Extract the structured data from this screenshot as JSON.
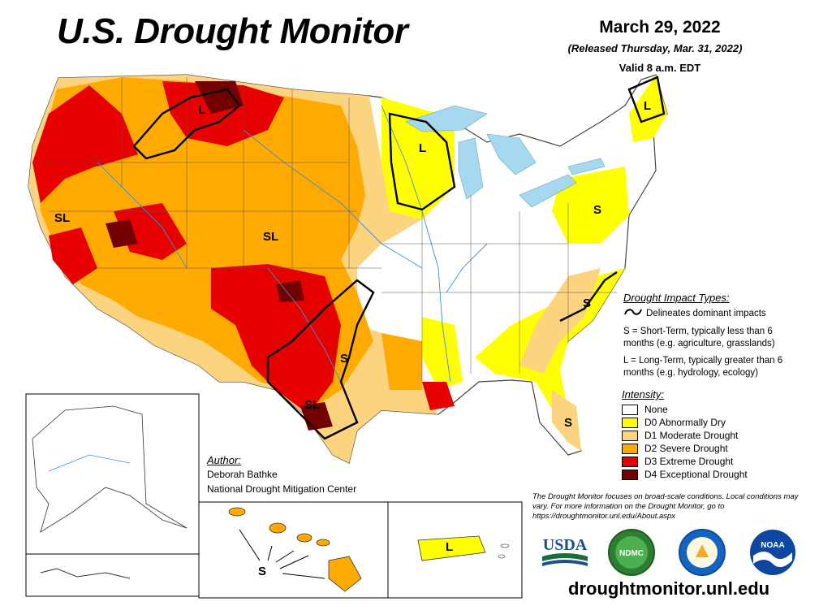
{
  "title": "U.S. Drought Monitor",
  "date": "March 29, 2022",
  "released": "(Released Thursday, Mar. 31, 2022)",
  "valid": "Valid 8 a.m. EDT",
  "impact_types": {
    "heading": "Drought Impact Types:",
    "delineates": "Delineates dominant impacts",
    "short_term": "S = Short-Term, typically less than 6 months (e.g. agriculture, grasslands)",
    "long_term": "L = Long-Term, typically greater than 6 months (e.g. hydrology, ecology)"
  },
  "intensity": {
    "heading": "Intensity:",
    "levels": [
      {
        "label": "None",
        "color": "#ffffff"
      },
      {
        "label": "D0 Abnormally Dry",
        "color": "#ffff00"
      },
      {
        "label": "D1 Moderate Drought",
        "color": "#fcd37f"
      },
      {
        "label": "D2 Severe Drought",
        "color": "#ffaa00"
      },
      {
        "label": "D3 Extreme Drought",
        "color": "#e60000"
      },
      {
        "label": "D4 Exceptional Drought",
        "color": "#730000"
      }
    ]
  },
  "author": {
    "heading": "Author:",
    "name": "Deborah Bathke",
    "org": "National Drought Mitigation Center"
  },
  "note": "The Drought Monitor focuses on broad-scale conditions. Local conditions may vary. For more information on the Drought Monitor, go to https://droughtmonitor.unl.edu/About.aspx",
  "map_labels": {
    "sl": "SL",
    "l": "L",
    "s": "S"
  },
  "logos": {
    "usda": "USDA",
    "ndmc": "NDMC",
    "noaa": "NOAA"
  },
  "url": "droughtmonitor.unl.edu"
}
